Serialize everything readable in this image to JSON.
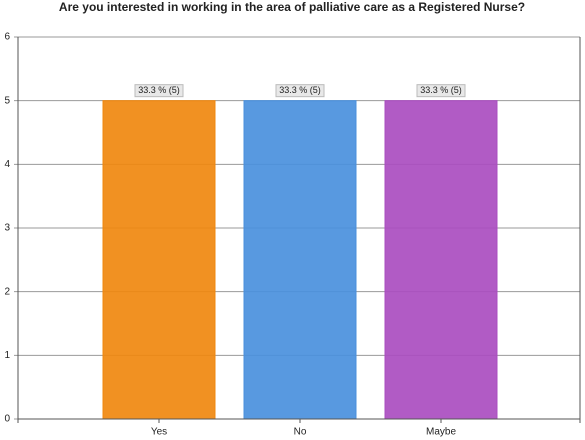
{
  "chart_data": {
    "type": "bar",
    "title": "Are you interested in working in the area of palliative care as a Registered Nurse?",
    "categories": [
      "Yes",
      "No",
      "Maybe"
    ],
    "values": [
      5,
      5,
      5
    ],
    "value_labels": [
      "33.3 % (5)",
      "33.3 % (5)",
      "33.3 % (5)"
    ],
    "colors": [
      "#f0880f",
      "#4a90dd",
      "#aa4dc0"
    ],
    "ylim": [
      0,
      6
    ],
    "yticks": [
      0,
      1,
      2,
      3,
      4,
      5,
      6
    ],
    "grid": true
  }
}
